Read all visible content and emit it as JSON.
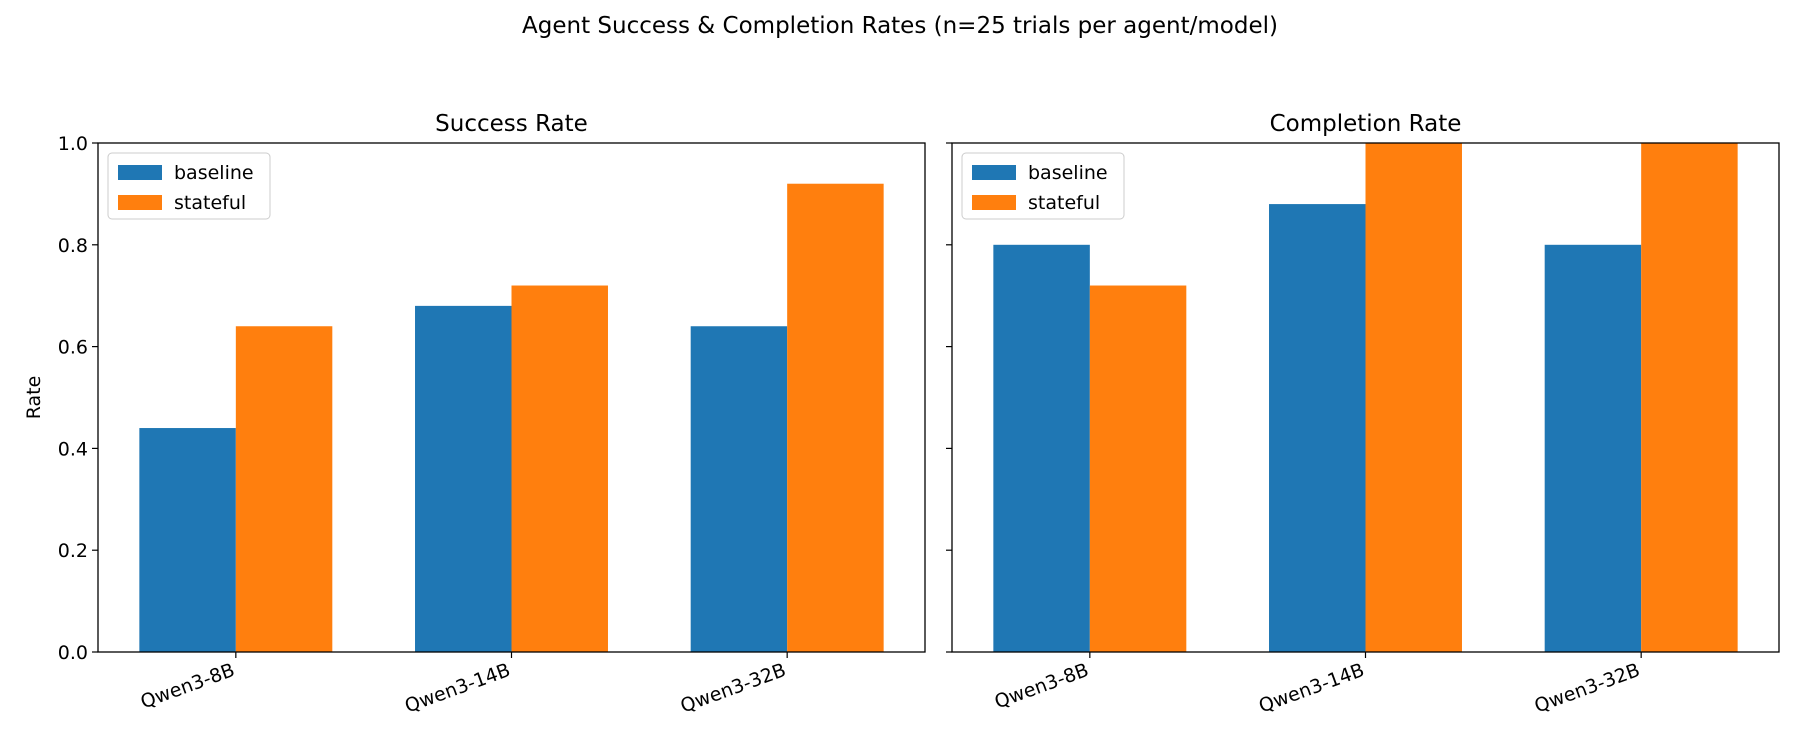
{
  "suptitle": "Agent Success & Completion Rates (n=25 trials per agent/model)",
  "colors": {
    "baseline": "#1f77b4",
    "stateful": "#ff7f0e"
  },
  "chart_data": [
    {
      "type": "bar",
      "title": "Success Rate",
      "ylabel": "Rate",
      "xlabel": "",
      "ylim": [
        0,
        1.0
      ],
      "yticks": [
        "0.0",
        "0.2",
        "0.4",
        "0.6",
        "0.8",
        "1.0"
      ],
      "categories": [
        "Qwen3-8B",
        "Qwen3-14B",
        "Qwen3-32B"
      ],
      "legend": "top-left",
      "grid": false,
      "series": [
        {
          "name": "baseline",
          "values": [
            0.44,
            0.68,
            0.64
          ]
        },
        {
          "name": "stateful",
          "values": [
            0.64,
            0.72,
            0.92
          ]
        }
      ]
    },
    {
      "type": "bar",
      "title": "Completion Rate",
      "ylabel": "",
      "xlabel": "",
      "ylim": [
        0,
        1.0
      ],
      "yticks": [],
      "categories": [
        "Qwen3-8B",
        "Qwen3-14B",
        "Qwen3-32B"
      ],
      "legend": "top-left",
      "grid": false,
      "series": [
        {
          "name": "baseline",
          "values": [
            0.8,
            0.88,
            0.8
          ]
        },
        {
          "name": "stateful",
          "values": [
            0.72,
            1.0,
            1.0
          ]
        }
      ]
    }
  ]
}
